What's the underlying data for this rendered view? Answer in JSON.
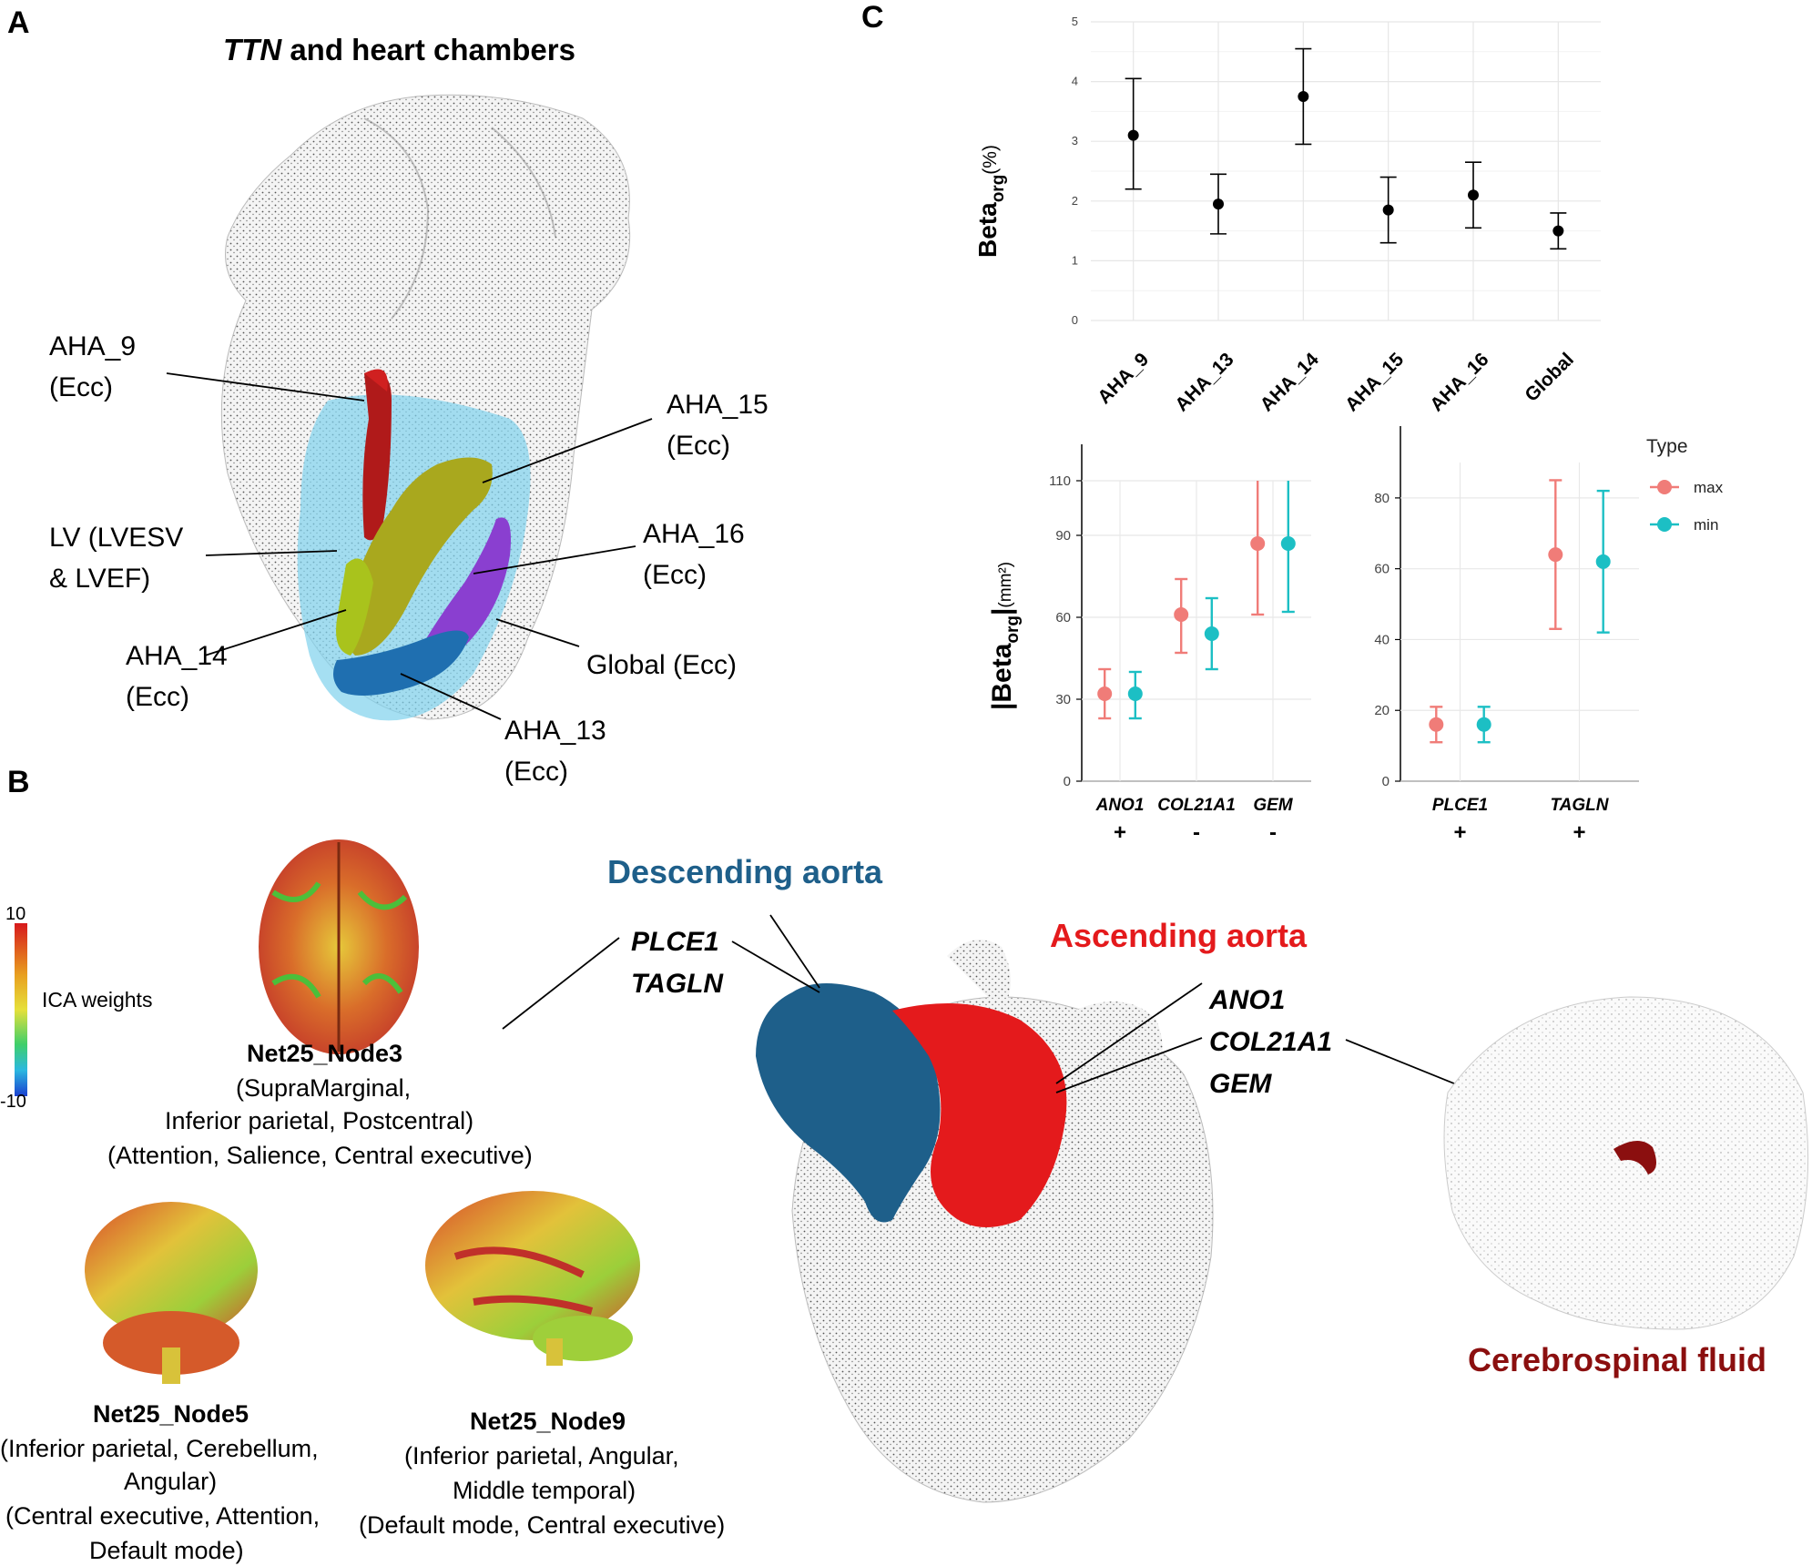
{
  "panel_labels": {
    "a": "A",
    "b": "B",
    "c": "C"
  },
  "panel_a": {
    "title_italic": "TTN",
    "title_rest": " and heart chambers",
    "labels": {
      "aha9": [
        "AHA_9",
        "(Ecc)"
      ],
      "aha15": [
        "AHA_15",
        "(Ecc)"
      ],
      "lv": [
        "LV (LVESV",
        "& LVEF)"
      ],
      "aha16": [
        "AHA_16",
        "(Ecc)"
      ],
      "aha14": [
        "AHA_14",
        "(Ecc)"
      ],
      "global": [
        "Global (Ecc)"
      ],
      "aha13": [
        "AHA_13",
        "(Ecc)"
      ]
    },
    "colors": {
      "aha9": "#b01a1a",
      "aha15": "#a9a81e",
      "aha14": "#a9c31c",
      "aha16": "#8a3fd0",
      "aha13": "#1f6fb0",
      "lv": "#7fd2ec"
    }
  },
  "panel_b": {
    "colorbar": {
      "max": "10",
      "min": "-10",
      "label": "ICA weights"
    },
    "nodes": [
      {
        "name": "Net25_Node3",
        "lines": [
          "(SupraMarginal,",
          "Inferior parietal, Postcentral)",
          "(Attention, Salience, Central executive)"
        ]
      },
      {
        "name": "Net25_Node5",
        "lines": [
          "(Inferior parietal, Cerebellum,",
          "Angular)",
          "(Central executive, Attention,",
          "Default mode)"
        ]
      },
      {
        "name": "Net25_Node9",
        "lines": [
          "(Inferior parietal, Angular,",
          "Middle temporal)",
          "(Default mode, Central executive)"
        ]
      }
    ],
    "descending_aorta": {
      "title": "Descending aorta",
      "genes": [
        "PLCE1",
        "TAGLN"
      ],
      "color": "#1e5f8a"
    },
    "ascending_aorta": {
      "title": "Ascending aorta",
      "genes": [
        "ANO1",
        "COL21A1",
        "GEM"
      ],
      "color": "#e41a1c"
    },
    "csf": {
      "title": "Cerebrospinal fluid",
      "color": "#8b0f0f"
    }
  },
  "chart_data": [
    {
      "type": "scatter",
      "subtype": "point-with-errorbars",
      "categories": [
        "AHA_9",
        "AHA_13",
        "AHA_14",
        "AHA_15",
        "AHA_16",
        "Global"
      ],
      "values": [
        3.1,
        1.95,
        3.75,
        1.85,
        2.1,
        1.5
      ],
      "lower": [
        2.2,
        1.45,
        2.95,
        1.3,
        1.55,
        1.2
      ],
      "upper": [
        4.05,
        2.45,
        4.55,
        2.4,
        2.65,
        1.8
      ],
      "ylabel": "Beta",
      "ylabel_sub": "org",
      "ylabel_unit": "(%)",
      "ylim": [
        0,
        5
      ],
      "yticks": [
        "0",
        "1",
        "2",
        "3",
        "4",
        "5"
      ],
      "grid": true
    },
    {
      "type": "scatter",
      "subtype": "point-with-errorbars",
      "categories": [
        "ANO1",
        "COL21A1",
        "GEM"
      ],
      "signs": [
        "+",
        "-",
        "-"
      ],
      "series": [
        {
          "name": "max",
          "color": "#f07c78",
          "values": [
            32,
            61,
            87
          ],
          "lower": [
            23,
            47,
            61
          ],
          "upper": [
            41,
            74,
            110
          ]
        },
        {
          "name": "min",
          "color": "#1cbfc4",
          "values": [
            32,
            54,
            87
          ],
          "lower": [
            23,
            41,
            62
          ],
          "upper": [
            40,
            67,
            110
          ]
        }
      ],
      "ylabel": "|Beta",
      "ylabel_sub": "org",
      "ylabel_end": "|",
      "ylabel_unit": "(mm²)",
      "ylim": [
        0,
        110
      ],
      "yticks": [
        "0",
        "30",
        "60",
        "90",
        "110"
      ],
      "ytick_values": [
        0,
        30,
        60,
        90,
        110
      ],
      "grid": true
    },
    {
      "type": "scatter",
      "subtype": "point-with-errorbars",
      "categories": [
        "PLCE1",
        "TAGLN"
      ],
      "signs": [
        "+",
        "+"
      ],
      "series": [
        {
          "name": "max",
          "color": "#f07c78",
          "values": [
            16,
            64
          ],
          "lower": [
            11,
            43
          ],
          "upper": [
            21,
            85
          ]
        },
        {
          "name": "min",
          "color": "#1cbfc4",
          "values": [
            16,
            62
          ],
          "lower": [
            11,
            42
          ],
          "upper": [
            21,
            82
          ]
        }
      ],
      "ylim": [
        0,
        90
      ],
      "yticks": [
        "0",
        "20",
        "40",
        "60",
        "80"
      ],
      "ytick_values": [
        0,
        20,
        40,
        60,
        80
      ],
      "legend": {
        "title": "Type",
        "placement": "top-right"
      },
      "grid": true
    }
  ]
}
